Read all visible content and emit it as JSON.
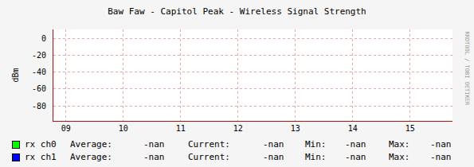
{
  "chart_data": {
    "type": "line",
    "title": "Baw Faw - Capitol Peak - Wireless Signal Strength",
    "y_label": "dBm",
    "side_text": "RRDTOOL / TOBI OETIKER",
    "xlim": [
      8.78,
      15.74
    ],
    "xticks": [
      {
        "value": 9,
        "label": "09"
      },
      {
        "value": 10,
        "label": "10"
      },
      {
        "value": 11,
        "label": "11"
      },
      {
        "value": 12,
        "label": "12"
      },
      {
        "value": 13,
        "label": "13"
      },
      {
        "value": 14,
        "label": "14"
      },
      {
        "value": 15,
        "label": "15"
      }
    ],
    "ylim": [
      -98,
      11
    ],
    "yticks": [
      -80,
      -60,
      -40,
      -20,
      0
    ],
    "grid": true,
    "x": [],
    "series": [
      {
        "name": "rx ch0",
        "color": "#00ff00",
        "values": [],
        "stats": [
          {
            "label": "Average:",
            "value": "-nan"
          },
          {
            "label": "Current:",
            "value": "-nan"
          },
          {
            "label": "Min:",
            "value": "-nan"
          },
          {
            "label": "Max:",
            "value": "-nan"
          }
        ]
      },
      {
        "name": "rx ch1",
        "color": "#0000ff",
        "values": [],
        "stats": [
          {
            "label": "Average:",
            "value": "-nan"
          },
          {
            "label": "Current:",
            "value": "-nan"
          },
          {
            "label": "Min:",
            "value": "-nan"
          },
          {
            "label": "Max:",
            "value": "-nan"
          }
        ]
      }
    ]
  }
}
